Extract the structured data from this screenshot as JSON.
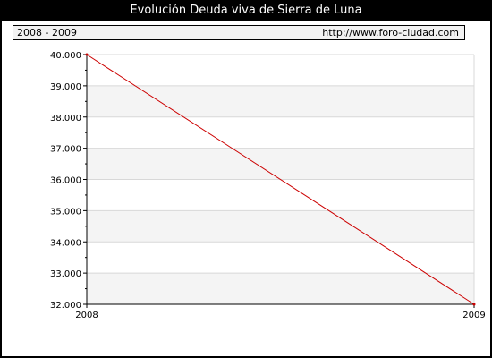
{
  "title": "Evolución Deuda viva de Sierra de Luna",
  "period_label": "2008 - 2009",
  "site_url": "http://www.foro-ciudad.com",
  "colors": {
    "line": "#cc0000",
    "band": "#f4f4f4",
    "grid": "#d8d8d8",
    "frame": "#000000"
  },
  "chart_data": {
    "type": "line",
    "title": "Evolución Deuda viva de Sierra de Luna",
    "x": [
      "2008",
      "2009"
    ],
    "series": [
      {
        "values": [
          40000,
          32000
        ]
      }
    ],
    "ylim": [
      32000,
      40000
    ],
    "yticks": [
      32000,
      33000,
      34000,
      35000,
      36000,
      37000,
      38000,
      39000,
      40000
    ],
    "ytick_labels": [
      "32.000",
      "33.000",
      "34.000",
      "35.000",
      "36.000",
      "37.000",
      "38.000",
      "39.000",
      "40.000"
    ],
    "xlabel": "",
    "ylabel": "",
    "grid": true,
    "legend": "none"
  }
}
